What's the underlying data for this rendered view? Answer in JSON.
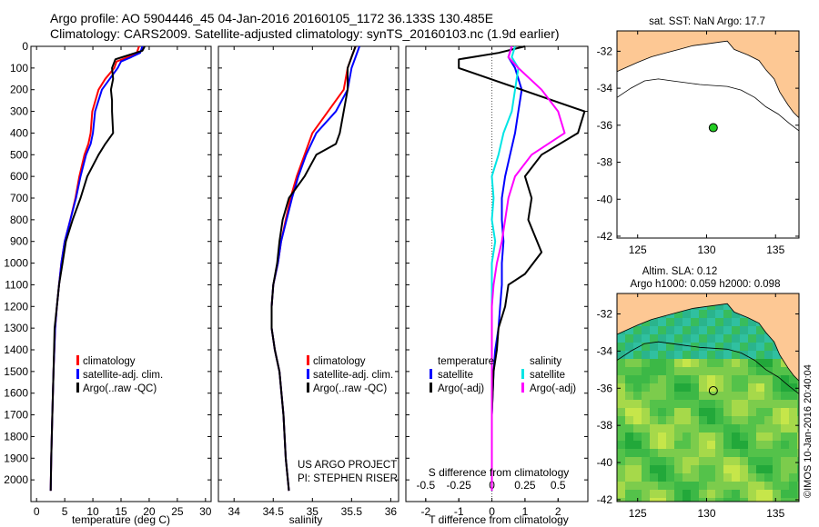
{
  "header": {
    "line1": "Argo profile: AO 5904446_45 04-Jan-2016 20160105_1172 36.133S 130.485E",
    "line2": "Climatology: CARS2009. Satellite-adjusted climatology: synTS_20160103.nc (1.9d earlier)"
  },
  "colors": {
    "climatology": "#ff0000",
    "satellite": "#0000ff",
    "argo": "#000000",
    "salinity_satellite": "#00e5e5",
    "salinity_argo": "#ff00ff",
    "land": "#fdc894",
    "ocean": "#ffffff",
    "marker": "#22cc22"
  },
  "panels": {
    "temperature": {
      "xlabel": "temperature (deg C)",
      "legend": [
        "climatology",
        "satellite-adj. clim.",
        "Argo(..raw -QC)"
      ]
    },
    "salinity": {
      "xlabel": "salinity",
      "legend": [
        "climatology",
        "satellite-adj. clim.",
        "Argo(..raw -QC)"
      ],
      "credit1": "US ARGO PROJECT",
      "credit2": "PI: STEPHEN RISER"
    },
    "difference": {
      "xlabel": "T difference from climatology",
      "top_label": "S difference from climatology",
      "legend_temp_title": "temperature",
      "legend_sal_title": "salinity",
      "legend_temp": [
        "satellite",
        "Argo(-adj)"
      ],
      "legend_sal": [
        "satellite",
        "Argo(-adj)"
      ]
    },
    "map1": {
      "title": "sat. SST: NaN Argo: 17.7"
    },
    "map2": {
      "title1": "Altim. SLA: 0.12",
      "title2": "Argo h1000: 0.059 h2000: 0.098"
    }
  },
  "watermark": "©IMOS 10-Jan-2016 20:40:04",
  "chart_data": [
    {
      "type": "line",
      "name": "temperature profile",
      "xlabel": "temperature (deg C)",
      "ylabel": "",
      "xlim": [
        -1,
        31
      ],
      "ylim": [
        2100,
        0
      ],
      "xticks": [
        0,
        5,
        10,
        15,
        20,
        25,
        30
      ],
      "yticks": [
        0,
        100,
        200,
        300,
        400,
        500,
        600,
        700,
        800,
        900,
        1000,
        1100,
        1200,
        1300,
        1400,
        1500,
        1600,
        1700,
        1800,
        1900,
        2000
      ],
      "series": [
        {
          "name": "climatology",
          "x": [
            18.2,
            17.8,
            16.2,
            14.2,
            13.8,
            12.2,
            11.0,
            9.9,
            9.6,
            9.2,
            8.5,
            7.6,
            6.9,
            6.0,
            5.0,
            4.4,
            4.0,
            3.6,
            3.3,
            3.0,
            2.8,
            2.6,
            2.5
          ],
          "y": [
            0,
            30,
            50,
            70,
            100,
            150,
            200,
            300,
            400,
            450,
            500,
            600,
            700,
            800,
            900,
            1000,
            1100,
            1200,
            1300,
            1500,
            1700,
            1900,
            2050
          ]
        },
        {
          "name": "satellite-adj. clim.",
          "x": [
            18.8,
            18.4,
            16.8,
            15.0,
            14.4,
            13.0,
            11.6,
            10.4,
            10.0,
            9.6,
            8.8,
            7.8,
            7.0,
            6.0,
            5.0,
            4.4,
            4.0,
            3.6,
            3.3,
            3.0,
            2.8,
            2.6,
            2.5
          ],
          "y": [
            0,
            30,
            50,
            70,
            100,
            150,
            200,
            300,
            400,
            450,
            500,
            600,
            700,
            800,
            900,
            1000,
            1100,
            1200,
            1300,
            1500,
            1700,
            1900,
            2050
          ]
        },
        {
          "name": "Argo(..raw -QC)",
          "x": [
            19.2,
            18.8,
            14.0,
            13.4,
            13.6,
            13.2,
            13.4,
            13.4,
            13.6,
            12.2,
            11.0,
            9.0,
            7.8,
            6.4,
            5.2,
            4.6,
            4.0,
            3.6,
            3.2,
            3.0,
            2.8,
            2.6,
            2.5
          ],
          "y": [
            0,
            20,
            60,
            100,
            150,
            200,
            250,
            300,
            400,
            450,
            500,
            600,
            700,
            800,
            900,
            1000,
            1100,
            1200,
            1300,
            1500,
            1700,
            1900,
            2050
          ]
        }
      ]
    },
    {
      "type": "line",
      "name": "salinity profile",
      "xlabel": "salinity",
      "ylabel": "",
      "xlim": [
        33.8,
        36.1
      ],
      "ylim": [
        2100,
        0
      ],
      "xticks": [
        34,
        34.5,
        35,
        35.5,
        36
      ],
      "series": [
        {
          "name": "climatology",
          "x": [
            35.55,
            35.5,
            35.45,
            35.4,
            35.2,
            35.0,
            34.9,
            34.8,
            34.72,
            34.66,
            34.6,
            34.56,
            34.5,
            34.48,
            34.48,
            34.52,
            34.58,
            34.63,
            34.66,
            34.7
          ],
          "y": [
            0,
            50,
            100,
            200,
            300,
            400,
            500,
            600,
            700,
            800,
            900,
            1000,
            1100,
            1200,
            1300,
            1400,
            1500,
            1700,
            1900,
            2050
          ]
        },
        {
          "name": "satellite-adj. clim.",
          "x": [
            35.6,
            35.55,
            35.5,
            35.45,
            35.3,
            35.05,
            34.92,
            34.82,
            34.74,
            34.67,
            34.6,
            34.56,
            34.5,
            34.48,
            34.48,
            34.52,
            34.58,
            34.63,
            34.66,
            34.7
          ],
          "y": [
            0,
            50,
            100,
            200,
            300,
            400,
            500,
            600,
            700,
            800,
            900,
            1000,
            1100,
            1200,
            1300,
            1400,
            1500,
            1700,
            1900,
            2050
          ]
        },
        {
          "name": "Argo(..raw -QC)",
          "x": [
            35.55,
            35.5,
            35.45,
            35.45,
            35.4,
            35.35,
            35.3,
            35.05,
            34.9,
            34.7,
            34.62,
            34.58,
            34.55,
            34.5,
            34.48,
            34.48,
            34.52,
            34.58,
            34.63,
            34.66,
            34.7
          ],
          "y": [
            0,
            50,
            100,
            200,
            300,
            400,
            450,
            500,
            600,
            700,
            800,
            900,
            1000,
            1100,
            1200,
            1300,
            1400,
            1500,
            1700,
            1900,
            2050
          ]
        }
      ]
    },
    {
      "type": "line",
      "name": "difference from climatology",
      "xlabel": "T difference from climatology",
      "top_label": "S difference from climatology",
      "xlim": [
        -2.6,
        2.9
      ],
      "ylim": [
        2100,
        0
      ],
      "xticks": [
        -2,
        -1,
        0,
        1,
        2
      ],
      "top_ticks": [
        -0.5,
        -0.25,
        0,
        0.25,
        0.5
      ],
      "series": [
        {
          "name": "satellite",
          "x": [
            0.6,
            0.5,
            0.7,
            0.9,
            0.8,
            0.7,
            0.55,
            0.4,
            0.3,
            0.3,
            0.35,
            0.3,
            0.3,
            0.25,
            0.2,
            0.1,
            0.05,
            0.0,
            0.0,
            0.0
          ],
          "y": [
            0,
            50,
            100,
            200,
            300,
            400,
            500,
            600,
            700,
            800,
            900,
            1000,
            1100,
            1200,
            1300,
            1400,
            1500,
            1700,
            1900,
            2050
          ]
        },
        {
          "name": "Argo(-adj)",
          "x": [
            1.0,
            0.2,
            -1.0,
            -1.0,
            2.8,
            2.6,
            1.5,
            1.0,
            1.2,
            1.1,
            1.5,
            1.0,
            0.5,
            0.4,
            0.2,
            0.15,
            0.05,
            0.0,
            0.0,
            0.0
          ],
          "y": [
            0,
            30,
            60,
            100,
            300,
            400,
            500,
            600,
            700,
            800,
            950,
            1050,
            1100,
            1200,
            1300,
            1400,
            1500,
            1700,
            1900,
            2050
          ]
        },
        {
          "name": "salinity satellite",
          "x": [
            0.7,
            0.6,
            0.8,
            0.7,
            0.6,
            0.35,
            0.2,
            0.0,
            0.05,
            0.0,
            0.1,
            0.0,
            0.0,
            0.0,
            0.0,
            0.0,
            0.0
          ],
          "y": [
            0,
            50,
            100,
            200,
            300,
            400,
            500,
            600,
            700,
            800,
            900,
            1000,
            1200,
            1400,
            1600,
            1800,
            2050
          ]
        },
        {
          "name": "salinity Argo(-adj)",
          "x": [
            0.6,
            0.5,
            0.8,
            1.5,
            2.0,
            2.2,
            1.2,
            0.7,
            0.5,
            0.4,
            0.3,
            0.15,
            0.05,
            0.0,
            0.0,
            0.0,
            0.0,
            0.0
          ],
          "y": [
            0,
            50,
            100,
            200,
            300,
            400,
            500,
            600,
            700,
            800,
            900,
            1000,
            1100,
            1200,
            1400,
            1600,
            1800,
            2050
          ]
        }
      ]
    },
    {
      "type": "scatter",
      "name": "SST map",
      "xlim": [
        123.5,
        136.7
      ],
      "ylim": [
        -42.1,
        -30.9
      ],
      "xticks": [
        125,
        130,
        135
      ],
      "yticks": [
        -32,
        -34,
        -36,
        -38,
        -40,
        -42
      ],
      "points": [
        {
          "x": 130.485,
          "y": -36.133
        }
      ]
    },
    {
      "type": "scatter",
      "name": "SLA map",
      "xlim": [
        123.5,
        136.7
      ],
      "ylim": [
        -42.1,
        -30.9
      ],
      "xticks": [
        125,
        130,
        135
      ],
      "yticks": [
        -32,
        -34,
        -36,
        -38,
        -40,
        -42
      ],
      "points": [
        {
          "x": 130.485,
          "y": -36.133
        }
      ]
    }
  ]
}
